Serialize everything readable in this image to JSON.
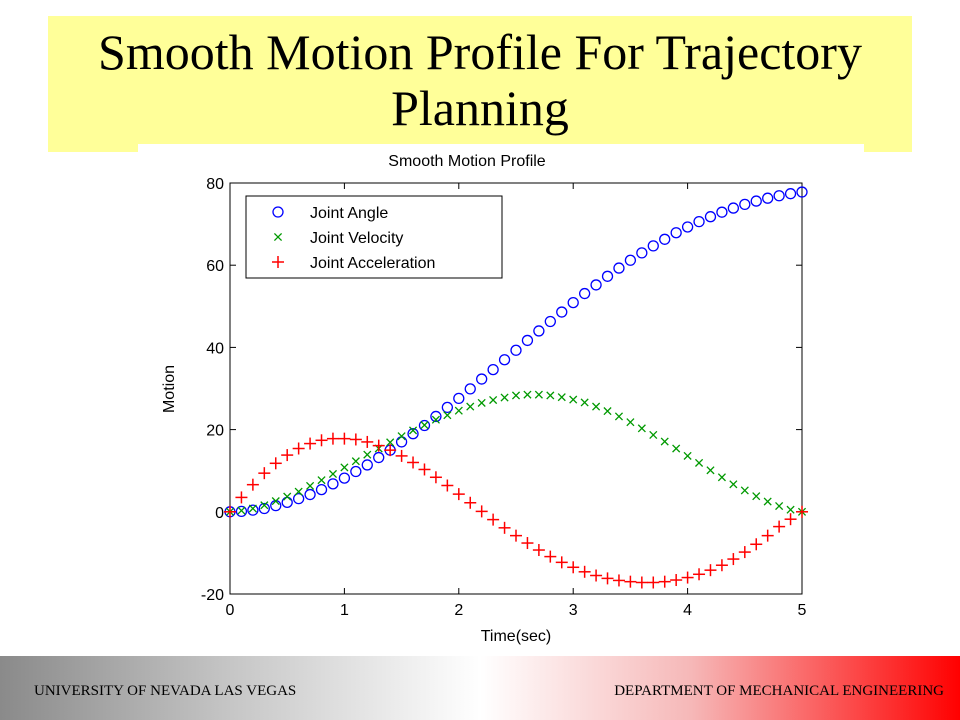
{
  "slide": {
    "title": "Smooth Motion Profile For Trajectory Planning",
    "footer_left": "UNIVERSITY OF NEVADA LAS VEGAS",
    "footer_right": "DEPARTMENT OF MECHANICAL ENGINEERING",
    "title_bg": "#ffff99"
  },
  "chart_data": {
    "type": "scatter",
    "title": "Smooth Motion Profile",
    "xlabel": "Time(sec)",
    "ylabel": "Motion",
    "xlim": [
      0,
      5
    ],
    "ylim": [
      -20,
      80
    ],
    "xticks": [
      0,
      1,
      2,
      3,
      4,
      5
    ],
    "yticks": [
      -20,
      0,
      20,
      40,
      60,
      80
    ],
    "grid": false,
    "legend_position": "top-left",
    "x": [
      0,
      0.1,
      0.2,
      0.3,
      0.4,
      0.5,
      0.6,
      0.7,
      0.8,
      0.9,
      1.0,
      1.1,
      1.2,
      1.3,
      1.4,
      1.5,
      1.6,
      1.7,
      1.8,
      1.9,
      2.0,
      2.1,
      2.2,
      2.3,
      2.4,
      2.5,
      2.6,
      2.7,
      2.8,
      2.9,
      3.0,
      3.1,
      3.2,
      3.3,
      3.4,
      3.5,
      3.6,
      3.7,
      3.8,
      3.9,
      4.0,
      4.1,
      4.2,
      4.3,
      4.4,
      4.5,
      4.6,
      4.7,
      4.8,
      4.9,
      5.0
    ],
    "series": [
      {
        "name": "Joint Angle",
        "marker": "circle",
        "color": "#0000ff",
        "values": [
          0.0,
          0.1,
          0.4,
          0.8,
          1.5,
          2.3,
          3.2,
          4.2,
          5.4,
          6.8,
          8.2,
          9.8,
          11.4,
          13.2,
          15.0,
          17.0,
          19.0,
          21.0,
          23.2,
          25.4,
          27.6,
          29.9,
          32.3,
          34.6,
          37.0,
          39.3,
          41.7,
          44.0,
          46.3,
          48.6,
          50.9,
          53.1,
          55.2,
          57.3,
          59.3,
          61.2,
          63.0,
          64.7,
          66.3,
          67.9,
          69.3,
          70.6,
          71.8,
          72.9,
          73.9,
          74.8,
          75.6,
          76.3,
          76.9,
          77.4,
          77.8
        ]
      },
      {
        "name": "Joint Velocity",
        "marker": "x",
        "color": "#009900",
        "values": [
          0.0,
          0.3,
          0.8,
          1.6,
          2.6,
          3.7,
          4.9,
          6.3,
          7.7,
          9.2,
          10.8,
          12.3,
          13.9,
          15.4,
          16.9,
          18.4,
          19.8,
          21.1,
          22.4,
          23.5,
          24.6,
          25.6,
          26.5,
          27.2,
          27.8,
          28.3,
          28.5,
          28.5,
          28.3,
          27.9,
          27.3,
          26.6,
          25.6,
          24.5,
          23.2,
          21.8,
          20.3,
          18.7,
          17.1,
          15.4,
          13.6,
          11.9,
          10.1,
          8.4,
          6.7,
          5.2,
          3.8,
          2.5,
          1.4,
          0.5,
          0.0
        ]
      },
      {
        "name": "Joint Acceleration",
        "marker": "plus",
        "color": "#ff0000",
        "values": [
          0.0,
          3.5,
          6.6,
          9.4,
          11.8,
          13.8,
          15.4,
          16.6,
          17.4,
          17.8,
          17.8,
          17.6,
          17.0,
          16.1,
          15.0,
          13.6,
          12.0,
          10.3,
          8.4,
          6.4,
          4.3,
          2.2,
          0.1,
          -1.9,
          -3.9,
          -5.8,
          -7.6,
          -9.3,
          -10.9,
          -12.3,
          -13.5,
          -14.6,
          -15.5,
          -16.2,
          -16.7,
          -17.0,
          -17.2,
          -17.2,
          -17.0,
          -16.6,
          -16.0,
          -15.2,
          -14.2,
          -13.0,
          -11.5,
          -9.8,
          -7.9,
          -5.8,
          -3.6,
          -1.8,
          0.0
        ]
      }
    ]
  }
}
